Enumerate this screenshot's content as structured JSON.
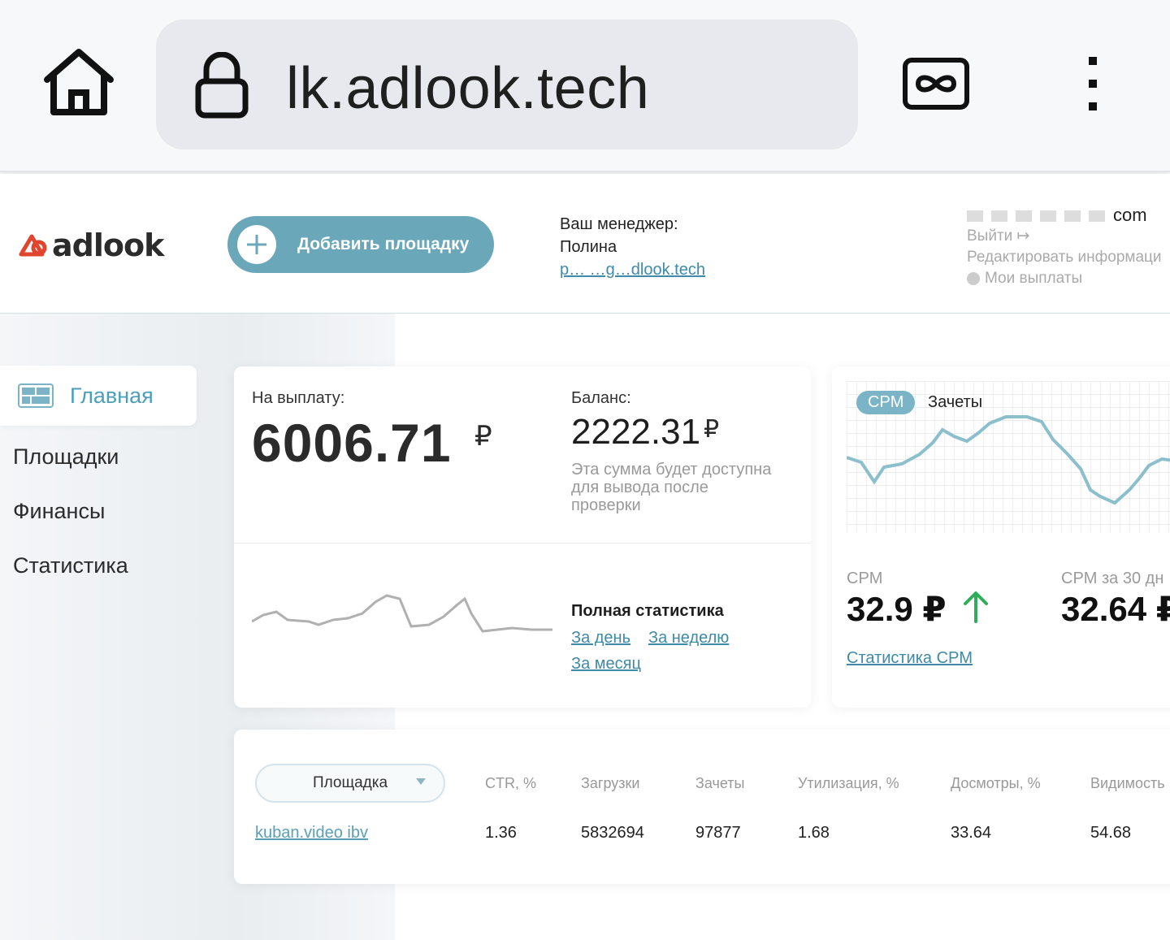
{
  "browser": {
    "url": "lk.adlook.tech"
  },
  "header": {
    "logo_text": "adlook",
    "add_button_label": "Добавить площадку",
    "manager_title": "Ваш менеджер:",
    "manager_name": "Полина",
    "manager_email": "p…  …g…dlook.tech",
    "account_email": "com",
    "logout": "Выйти",
    "edit_info": "Редактировать информаци",
    "my_payouts": "Мои выплаты"
  },
  "sidebar": {
    "items": [
      {
        "label": "Главная",
        "active": true
      },
      {
        "label": "Площадки"
      },
      {
        "label": "Финансы"
      },
      {
        "label": "Статистика"
      }
    ]
  },
  "payout_card": {
    "payout_label": "На выплату:",
    "payout_value": "6006.71",
    "balance_label": "Баланс:",
    "balance_value": "2222.31",
    "currency": "₽",
    "note": "Эта сумма будет доступна для вывода после проверки",
    "full_stats": "Полная статистика",
    "link_day": "За день",
    "link_week": "За неделю",
    "link_month": "За месяц"
  },
  "cpm_card": {
    "tab_cpm": "CPM",
    "tab_zachety": "Зачеты",
    "cpm_label": "CPM",
    "cpm_value": "32.9 ₽",
    "cpm30_label": "CPM за 30 дн",
    "cpm30_value": "32.64 ₽",
    "cpm_link": "Статистика CPM",
    "trend": "up",
    "trend_color": "#2fae5a"
  },
  "table": {
    "filter_label": "Площадка",
    "headers": [
      "CTR, %",
      "Загрузки",
      "Зачеты",
      "Утилизация, %",
      "Досмотры, %",
      "Видимость"
    ],
    "rows": [
      {
        "site": "kuban.video ibv",
        "ctr": "1.36",
        "loads": "5832694",
        "zachety": "97877",
        "util": "1.68",
        "views": "33.64",
        "visibility": "54.68"
      }
    ]
  },
  "colors": {
    "accent": "#6aa8b9",
    "link": "#3e8aa8",
    "logo_red": "#e0452e"
  }
}
